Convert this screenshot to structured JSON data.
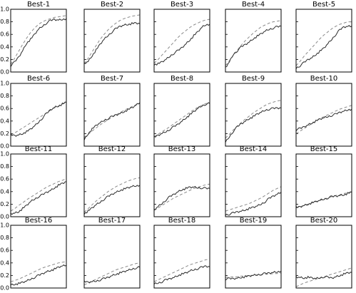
{
  "chart_data": {
    "type": "line",
    "layout": "small-multiples 4x5",
    "ylim": [
      0.0,
      1.0
    ],
    "yticks": [
      "0.0",
      "0.2",
      "0.4",
      "0.6",
      "0.8",
      "1.0"
    ],
    "xlabel": "",
    "ylabel": "",
    "series_styles": {
      "observed": "solid dark gray line",
      "expected": "dashed gray line"
    },
    "colors": {
      "solid": "#2b2b2b",
      "dashed": "#8a8a8a",
      "axes": "#000000"
    },
    "grid": false,
    "panels": [
      {
        "title": "Best-1",
        "solid": [
          0.1,
          0.16,
          0.24,
          0.34,
          0.46,
          0.52,
          0.6,
          0.68,
          0.73,
          0.78,
          0.82,
          0.84,
          0.83,
          0.84,
          0.85
        ],
        "dashed": [
          0.12,
          0.22,
          0.33,
          0.44,
          0.54,
          0.63,
          0.7,
          0.76,
          0.8,
          0.83,
          0.85,
          0.87,
          0.88,
          0.89,
          0.9
        ]
      },
      {
        "title": "Best-2",
        "solid": [
          0.14,
          0.17,
          0.26,
          0.35,
          0.44,
          0.52,
          0.58,
          0.64,
          0.69,
          0.73,
          0.75,
          0.76,
          0.77,
          0.78,
          0.77
        ],
        "dashed": [
          0.13,
          0.22,
          0.32,
          0.42,
          0.52,
          0.6,
          0.67,
          0.73,
          0.78,
          0.82,
          0.85,
          0.87,
          0.89,
          0.9,
          0.91
        ]
      },
      {
        "title": "Best-3",
        "solid": [
          0.12,
          0.13,
          0.16,
          0.2,
          0.25,
          0.3,
          0.34,
          0.39,
          0.45,
          0.51,
          0.58,
          0.64,
          0.71,
          0.75,
          0.76
        ],
        "dashed": [
          0.14,
          0.2,
          0.27,
          0.34,
          0.41,
          0.48,
          0.55,
          0.61,
          0.66,
          0.71,
          0.75,
          0.78,
          0.81,
          0.83,
          0.84
        ]
      },
      {
        "title": "Best-4",
        "solid": [
          0.07,
          0.16,
          0.28,
          0.34,
          0.4,
          0.44,
          0.48,
          0.53,
          0.57,
          0.61,
          0.65,
          0.68,
          0.7,
          0.72,
          0.73
        ],
        "dashed": [
          0.1,
          0.18,
          0.27,
          0.35,
          0.43,
          0.5,
          0.56,
          0.62,
          0.67,
          0.72,
          0.75,
          0.78,
          0.8,
          0.81,
          0.82
        ]
      },
      {
        "title": "Best-5",
        "solid": [
          0.06,
          0.1,
          0.15,
          0.2,
          0.23,
          0.28,
          0.33,
          0.38,
          0.45,
          0.52,
          0.6,
          0.67,
          0.72,
          0.73,
          0.73
        ],
        "dashed": [
          0.1,
          0.17,
          0.25,
          0.32,
          0.39,
          0.46,
          0.53,
          0.59,
          0.64,
          0.69,
          0.73,
          0.76,
          0.78,
          0.8,
          0.8
        ]
      },
      {
        "title": "Best-6",
        "solid": [
          0.18,
          0.17,
          0.18,
          0.2,
          0.23,
          0.27,
          0.32,
          0.38,
          0.45,
          0.52,
          0.58,
          0.62,
          0.64,
          0.67,
          0.7
        ],
        "dashed": [
          0.18,
          0.21,
          0.25,
          0.29,
          0.33,
          0.37,
          0.41,
          0.45,
          0.49,
          0.53,
          0.57,
          0.61,
          0.64,
          0.67,
          0.7
        ]
      },
      {
        "title": "Best-7",
        "solid": [
          0.1,
          0.2,
          0.27,
          0.33,
          0.37,
          0.41,
          0.44,
          0.47,
          0.5,
          0.52,
          0.55,
          0.58,
          0.61,
          0.65,
          0.69
        ],
        "dashed": [
          0.14,
          0.19,
          0.24,
          0.29,
          0.34,
          0.38,
          0.42,
          0.46,
          0.5,
          0.53,
          0.57,
          0.6,
          0.63,
          0.66,
          0.69
        ]
      },
      {
        "title": "Best-8",
        "solid": [
          0.14,
          0.17,
          0.2,
          0.23,
          0.27,
          0.31,
          0.35,
          0.4,
          0.45,
          0.5,
          0.55,
          0.6,
          0.64,
          0.67,
          0.68
        ],
        "dashed": [
          0.15,
          0.19,
          0.23,
          0.27,
          0.31,
          0.36,
          0.4,
          0.45,
          0.49,
          0.54,
          0.58,
          0.62,
          0.65,
          0.68,
          0.69
        ]
      },
      {
        "title": "Best-9",
        "solid": [
          0.06,
          0.15,
          0.24,
          0.31,
          0.36,
          0.4,
          0.44,
          0.47,
          0.51,
          0.54,
          0.57,
          0.59,
          0.6,
          0.61,
          0.61
        ],
        "dashed": [
          0.13,
          0.19,
          0.26,
          0.32,
          0.38,
          0.43,
          0.48,
          0.53,
          0.57,
          0.61,
          0.65,
          0.68,
          0.7,
          0.72,
          0.73
        ]
      },
      {
        "title": "Best-10",
        "solid": [
          0.26,
          0.28,
          0.31,
          0.34,
          0.37,
          0.4,
          0.43,
          0.45,
          0.47,
          0.49,
          0.51,
          0.54,
          0.56,
          0.58,
          0.59
        ],
        "dashed": [
          0.2,
          0.24,
          0.28,
          0.32,
          0.36,
          0.4,
          0.44,
          0.47,
          0.5,
          0.53,
          0.56,
          0.59,
          0.61,
          0.63,
          0.65
        ]
      },
      {
        "title": "Best-11",
        "solid": [
          0.05,
          0.06,
          0.08,
          0.13,
          0.18,
          0.24,
          0.28,
          0.32,
          0.35,
          0.39,
          0.42,
          0.46,
          0.5,
          0.53,
          0.56
        ],
        "dashed": [
          0.09,
          0.13,
          0.18,
          0.22,
          0.27,
          0.31,
          0.35,
          0.39,
          0.43,
          0.47,
          0.5,
          0.53,
          0.56,
          0.58,
          0.61
        ]
      },
      {
        "title": "Best-12",
        "solid": [
          0.05,
          0.09,
          0.14,
          0.19,
          0.23,
          0.28,
          0.32,
          0.36,
          0.39,
          0.42,
          0.44,
          0.46,
          0.48,
          0.49,
          0.5
        ],
        "dashed": [
          0.07,
          0.13,
          0.19,
          0.25,
          0.3,
          0.35,
          0.4,
          0.44,
          0.48,
          0.51,
          0.54,
          0.57,
          0.59,
          0.61,
          0.62
        ]
      },
      {
        "title": "Best-13",
        "solid": [
          0.11,
          0.16,
          0.21,
          0.27,
          0.32,
          0.36,
          0.4,
          0.43,
          0.45,
          0.47,
          0.47,
          0.46,
          0.46,
          0.45,
          0.45
        ],
        "dashed": [
          0.1,
          0.14,
          0.18,
          0.22,
          0.26,
          0.3,
          0.33,
          0.36,
          0.39,
          0.42,
          0.45,
          0.47,
          0.49,
          0.51,
          0.52
        ]
      },
      {
        "title": "Best-14",
        "solid": [
          0.03,
          0.04,
          0.06,
          0.08,
          0.09,
          0.11,
          0.13,
          0.15,
          0.17,
          0.2,
          0.24,
          0.29,
          0.33,
          0.36,
          0.39
        ],
        "dashed": [
          0.09,
          0.11,
          0.13,
          0.15,
          0.17,
          0.19,
          0.21,
          0.24,
          0.27,
          0.3,
          0.34,
          0.38,
          0.42,
          0.45,
          0.48
        ]
      },
      {
        "title": "Best-15",
        "solid": [
          0.15,
          0.16,
          0.18,
          0.2,
          0.22,
          0.24,
          0.26,
          0.28,
          0.3,
          0.32,
          0.33,
          0.34,
          0.35,
          0.37,
          0.39
        ],
        "dashed": [
          0.14,
          0.16,
          0.18,
          0.2,
          0.22,
          0.24,
          0.26,
          0.28,
          0.3,
          0.32,
          0.34,
          0.35,
          0.37,
          0.38,
          0.4
        ]
      },
      {
        "title": "Best-16",
        "solid": [
          0.05,
          0.06,
          0.07,
          0.09,
          0.11,
          0.14,
          0.17,
          0.2,
          0.23,
          0.26,
          0.28,
          0.3,
          0.33,
          0.35,
          0.36
        ],
        "dashed": [
          0.1,
          0.12,
          0.14,
          0.17,
          0.2,
          0.23,
          0.26,
          0.29,
          0.32,
          0.34,
          0.36,
          0.38,
          0.4,
          0.41,
          0.42
        ]
      },
      {
        "title": "Best-17",
        "solid": [
          0.1,
          0.09,
          0.1,
          0.11,
          0.13,
          0.15,
          0.17,
          0.2,
          0.22,
          0.24,
          0.26,
          0.28,
          0.3,
          0.32,
          0.33
        ],
        "dashed": [
          0.05,
          0.08,
          0.11,
          0.14,
          0.17,
          0.2,
          0.23,
          0.26,
          0.29,
          0.31,
          0.33,
          0.35,
          0.37,
          0.39,
          0.4
        ]
      },
      {
        "title": "Best-18",
        "solid": [
          0.06,
          0.08,
          0.1,
          0.13,
          0.15,
          0.17,
          0.2,
          0.22,
          0.24,
          0.27,
          0.29,
          0.31,
          0.33,
          0.35,
          0.34
        ],
        "dashed": [
          0.1,
          0.13,
          0.16,
          0.19,
          0.22,
          0.25,
          0.28,
          0.31,
          0.34,
          0.37,
          0.39,
          0.41,
          0.43,
          0.45,
          0.46
        ]
      },
      {
        "title": "Best-19",
        "solid": [
          0.14,
          0.15,
          0.15,
          0.16,
          0.17,
          0.18,
          0.19,
          0.2,
          0.21,
          0.22,
          0.23,
          0.24,
          0.25,
          0.26,
          0.27
        ],
        "dashed": [
          0.17,
          0.17,
          0.18,
          0.18,
          0.19,
          0.19,
          0.2,
          0.2,
          0.21,
          0.21,
          0.22,
          0.22,
          0.23,
          0.23,
          0.24
        ]
      },
      {
        "title": "Best-20",
        "solid": [
          0.18,
          0.17,
          0.16,
          0.17,
          0.16,
          0.15,
          0.16,
          0.18,
          0.17,
          0.16,
          0.18,
          0.2,
          0.22,
          0.24,
          0.25
        ],
        "dashed": [
          0.02,
          0.05,
          0.08,
          0.1,
          0.12,
          0.14,
          0.16,
          0.18,
          0.2,
          0.22,
          0.24,
          0.26,
          0.28,
          0.3,
          0.32
        ]
      }
    ]
  }
}
